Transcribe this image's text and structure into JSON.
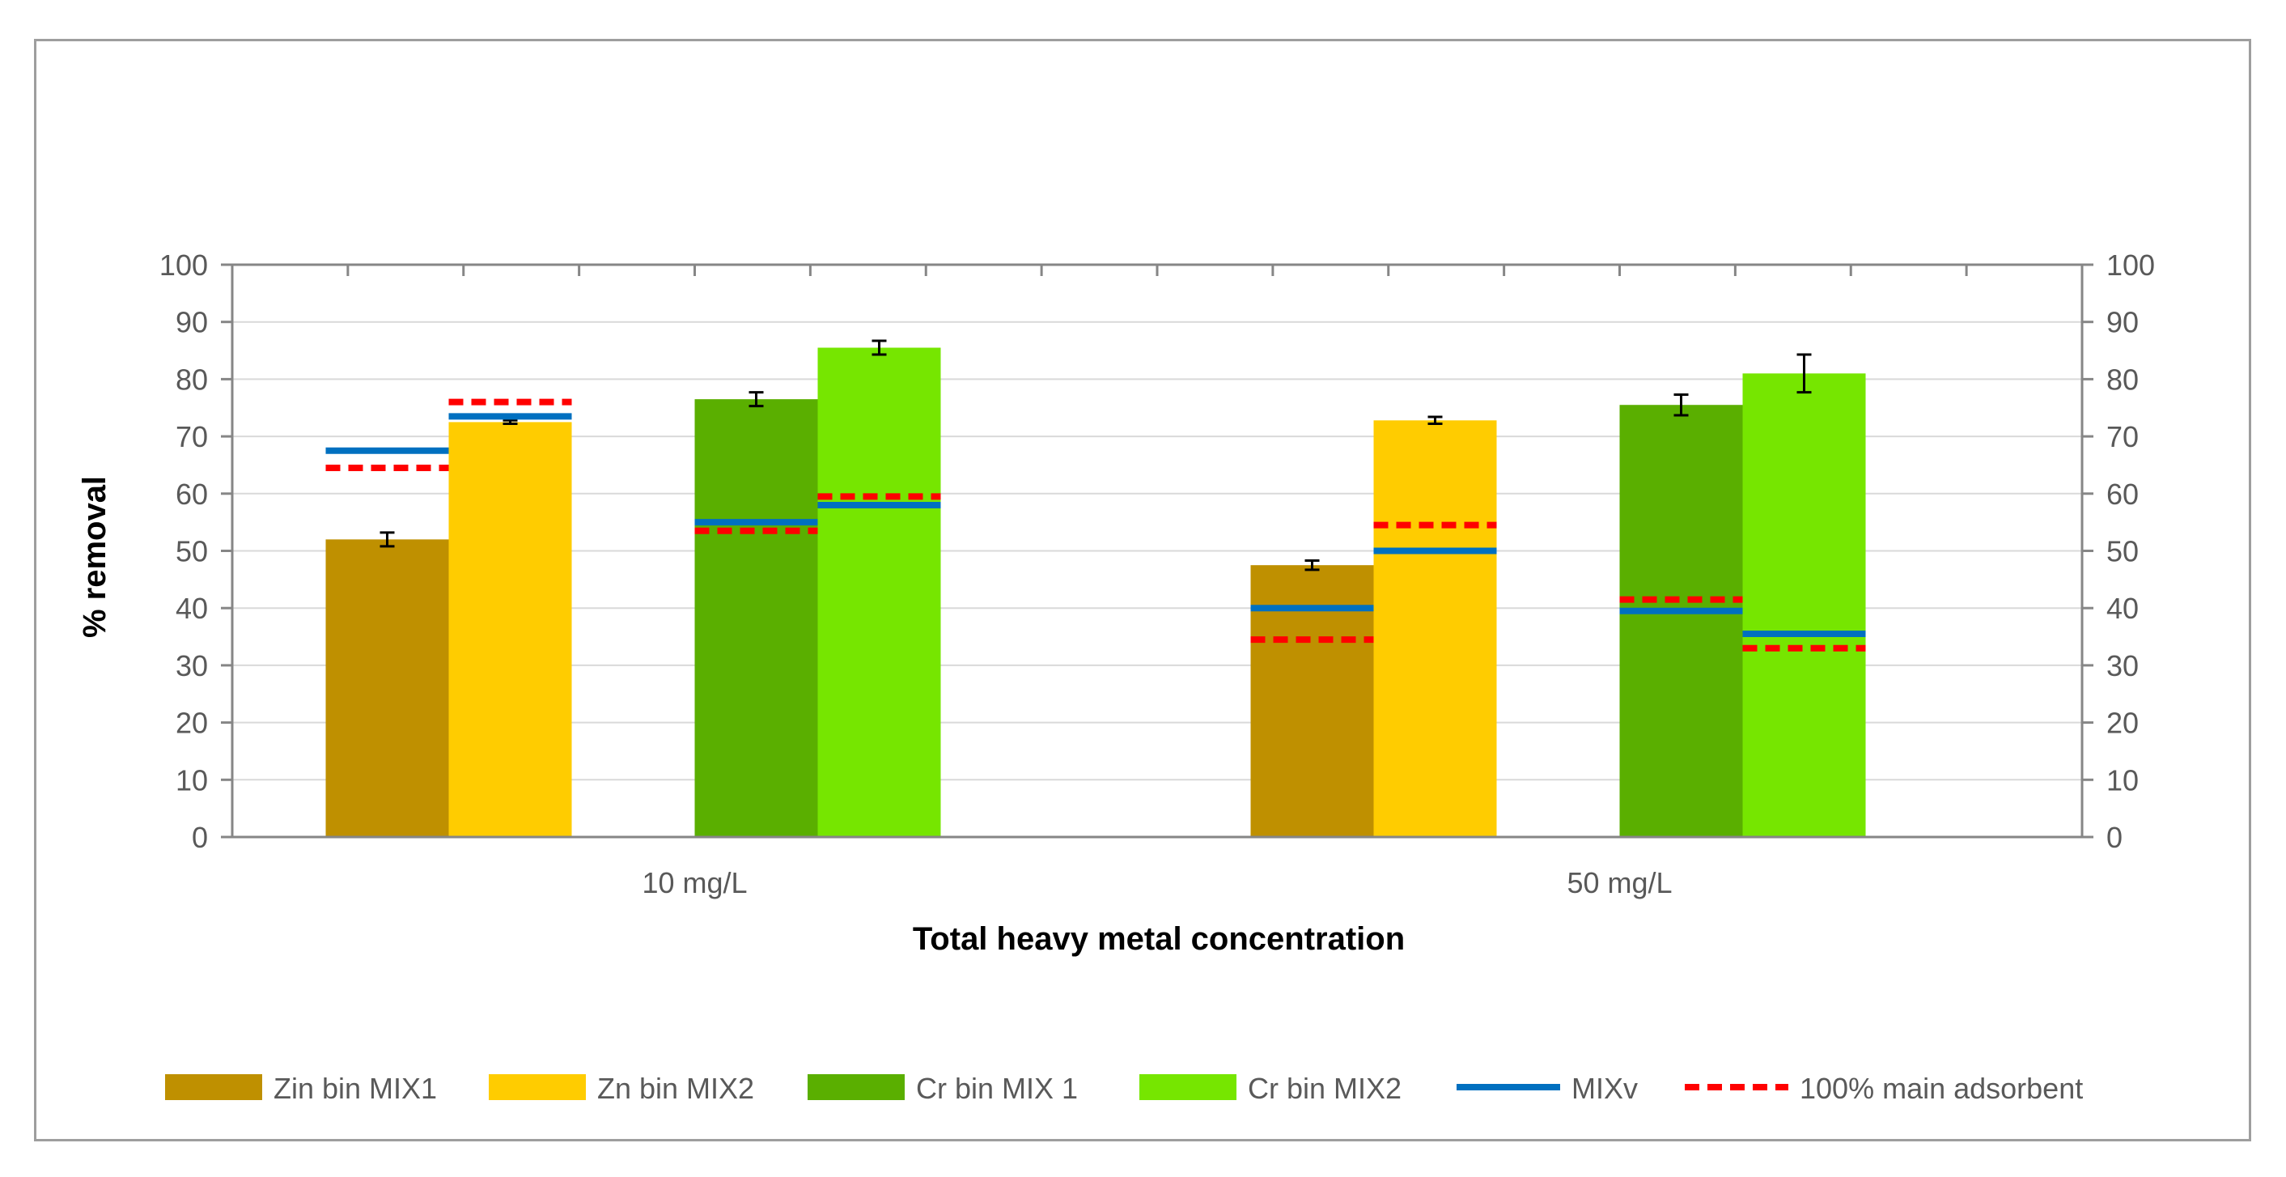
{
  "chart_data": {
    "type": "bar",
    "title": "",
    "xlabel": "Total heavy metal concentration",
    "ylabel": "% removal",
    "ylim": [
      0,
      100
    ],
    "yticks": [
      0,
      10,
      20,
      30,
      40,
      50,
      60,
      70,
      80,
      90,
      100
    ],
    "y2ticks": [
      0,
      10,
      20,
      30,
      40,
      50,
      60,
      70,
      80,
      90,
      100
    ],
    "grid": true,
    "legend_position": "bottom",
    "categories": [
      "10 mg/L",
      "50 mg/L"
    ],
    "series": [
      {
        "name": "Zin bin MIX1",
        "color": "#BF9000",
        "values": [
          52,
          47.5
        ],
        "errors": [
          1.2,
          0.8
        ]
      },
      {
        "name": "Zn bin MIX2",
        "color": "#FFCC00",
        "values": [
          72.5,
          72.8
        ],
        "errors": [
          0.3,
          0.6
        ]
      },
      {
        "name": "Cr bin MIX 1",
        "color": "#5AAF00",
        "values": [
          76.5,
          75.5
        ],
        "errors": [
          1.2,
          1.8
        ]
      },
      {
        "name": "Cr bin MIX2",
        "color": "#76E600",
        "values": [
          85.5,
          81
        ],
        "errors": [
          1.2,
          3.3
        ]
      }
    ],
    "line_series": [
      {
        "name": "MIXv",
        "color": "#0070C0",
        "style": "solid",
        "values": [
          [
            67.5,
            73.5,
            55,
            58
          ],
          [
            40,
            50,
            39.5,
            35.5
          ]
        ]
      },
      {
        "name": "100% main adsorbent",
        "color": "#FF0000",
        "style": "dashed",
        "values": [
          [
            64.5,
            76,
            53.5,
            59.5
          ],
          [
            34.5,
            54.5,
            41.5,
            33
          ]
        ]
      }
    ]
  }
}
